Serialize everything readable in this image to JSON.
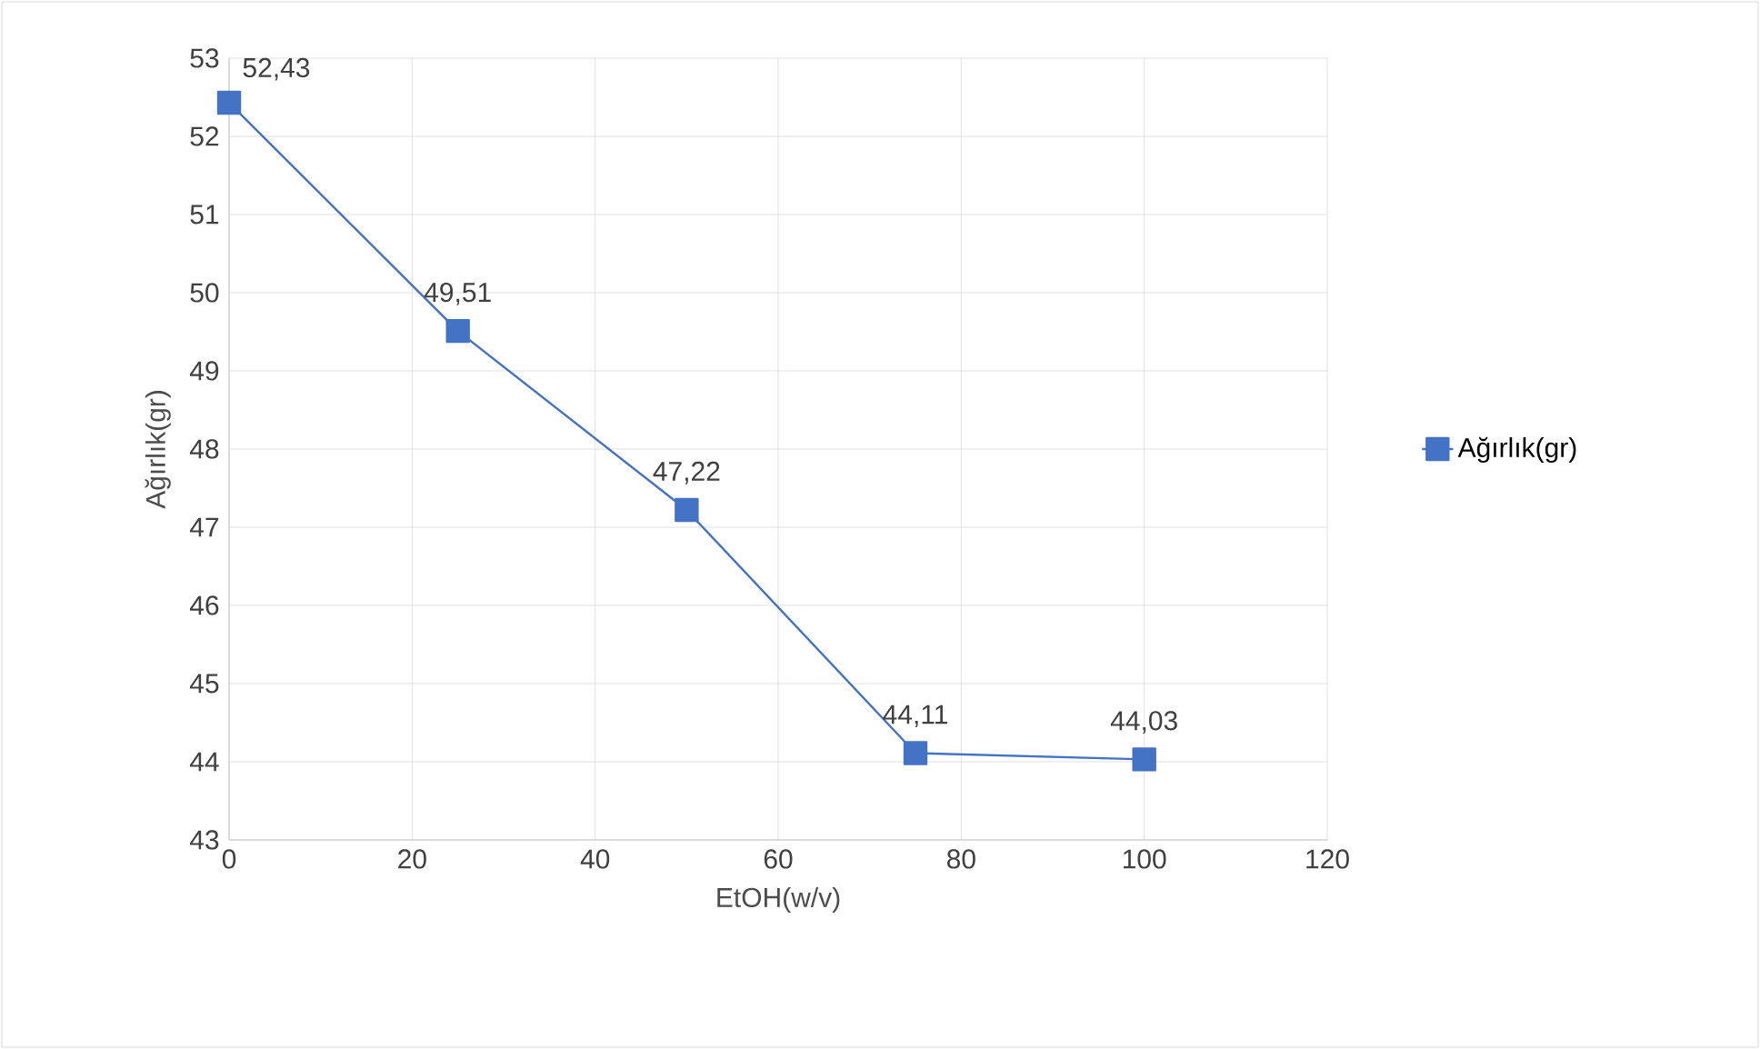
{
  "chart_data": {
    "type": "line",
    "xlabel": "EtOH(w/v)",
    "ylabel": "Ağırlık(gr)",
    "x": [
      0,
      25,
      50,
      75,
      100
    ],
    "series": [
      {
        "name": "Ağırlık(gr)",
        "color": "#4472c4",
        "values": [
          52.43,
          49.51,
          47.22,
          44.11,
          44.03
        ],
        "value_labels": [
          "52,43",
          "49,51",
          "47,22",
          "44,11",
          "44,03"
        ]
      }
    ],
    "xlim": [
      0,
      120
    ],
    "xticks": [
      0,
      20,
      40,
      60,
      80,
      100,
      120
    ],
    "ylim": [
      43,
      53
    ],
    "yticks": [
      43,
      44,
      45,
      46,
      47,
      48,
      49,
      50,
      51,
      52,
      53
    ],
    "grid": true,
    "legend": "right",
    "marker": "square",
    "line_style": "solid"
  }
}
